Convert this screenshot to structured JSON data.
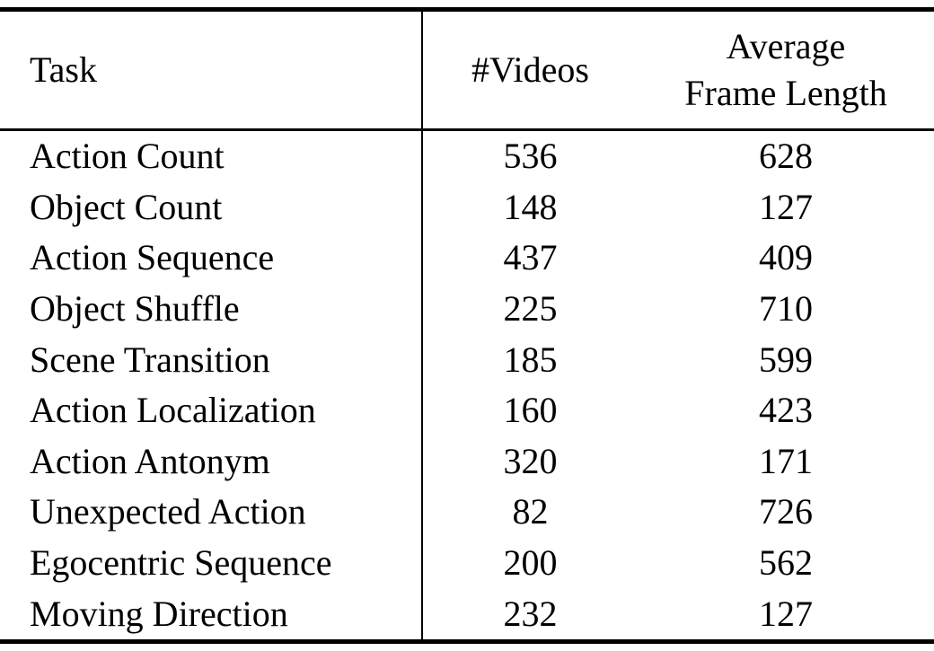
{
  "table": {
    "columns": {
      "task": "Task",
      "videos": "#Videos",
      "avg_frame_length": "Average\nFrame Length"
    },
    "rows": [
      {
        "task": "Action Count",
        "videos": "536",
        "avg_frame_length": "628"
      },
      {
        "task": "Object Count",
        "videos": "148",
        "avg_frame_length": "127"
      },
      {
        "task": "Action Sequence",
        "videos": "437",
        "avg_frame_length": "409"
      },
      {
        "task": "Object Shuffle",
        "videos": "225",
        "avg_frame_length": "710"
      },
      {
        "task": "Scene Transition",
        "videos": "185",
        "avg_frame_length": "599"
      },
      {
        "task": "Action Localization",
        "videos": "160",
        "avg_frame_length": "423"
      },
      {
        "task": "Action Antonym",
        "videos": "320",
        "avg_frame_length": "171"
      },
      {
        "task": "Unexpected Action",
        "videos": "82",
        "avg_frame_length": "726"
      },
      {
        "task": "Egocentric Sequence",
        "videos": "200",
        "avg_frame_length": "562"
      },
      {
        "task": "Moving Direction",
        "videos": "232",
        "avg_frame_length": "127"
      }
    ],
    "colors": {
      "text": "#000000",
      "background": "#ffffff",
      "rule": "#000000"
    }
  },
  "chart_data": {
    "type": "table",
    "title": "",
    "columns": [
      "Task",
      "#Videos",
      "Average Frame Length"
    ],
    "rows": [
      [
        "Action Count",
        536,
        628
      ],
      [
        "Object Count",
        148,
        127
      ],
      [
        "Action Sequence",
        437,
        409
      ],
      [
        "Object Shuffle",
        225,
        710
      ],
      [
        "Scene Transition",
        185,
        599
      ],
      [
        "Action Localization",
        160,
        423
      ],
      [
        "Action Antonym",
        320,
        171
      ],
      [
        "Unexpected Action",
        82,
        726
      ],
      [
        "Egocentric Sequence",
        200,
        562
      ],
      [
        "Moving Direction",
        232,
        127
      ]
    ]
  }
}
